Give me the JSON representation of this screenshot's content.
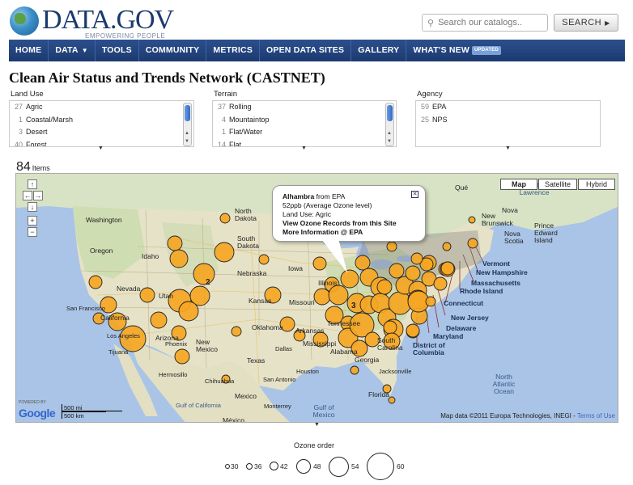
{
  "header": {
    "logo_text": "DATA.GOV",
    "tagline": "EMPOWERING PEOPLE",
    "search_placeholder": "Search our catalogs..",
    "search_button": "SEARCH"
  },
  "nav": {
    "items": [
      "HOME",
      "DATA",
      "TOOLS",
      "COMMUNITY",
      "METRICS",
      "OPEN DATA SITES",
      "GALLERY",
      "WHAT'S NEW"
    ],
    "badge": "UPDATED",
    "brand_color": "#1f3e78"
  },
  "page": {
    "title": "Clean Air Status and Trends Network (CASTNET)"
  },
  "filters": {
    "land_use": {
      "label": "Land Use",
      "rows": [
        {
          "count": "27",
          "name": "Agric"
        },
        {
          "count": "1",
          "name": "Coastal/Marsh"
        },
        {
          "count": "3",
          "name": "Desert"
        },
        {
          "count": "40",
          "name": "Forest"
        }
      ]
    },
    "terrain": {
      "label": "Terrain",
      "rows": [
        {
          "count": "37",
          "name": "Rolling"
        },
        {
          "count": "4",
          "name": "Mountaintop"
        },
        {
          "count": "1",
          "name": "Flat/Water"
        },
        {
          "count": "14",
          "name": "Flat"
        }
      ]
    },
    "agency": {
      "label": "Agency",
      "rows": [
        {
          "count": "59",
          "name": "EPA"
        },
        {
          "count": "25",
          "name": "NPS"
        }
      ]
    }
  },
  "results": {
    "count": "84",
    "label": "Items"
  },
  "map": {
    "type_buttons": [
      "Map",
      "Satellite",
      "Hybrid"
    ],
    "infowindow": {
      "site": "Alhambra",
      "from": "from EPA",
      "line2": "52ppb (Average Ozone level)",
      "line3": "Land Use: Agric",
      "link1": "View Ozone Records from this Site",
      "link2": "More Information @ EPA"
    },
    "scale_mi": "500 mi",
    "scale_km": "500 km",
    "powered_by": "POWERED BY",
    "google": "Google",
    "attribution": "Map data ©2011 Europa Technologies, INEGI -",
    "terms": "Terms of Use",
    "cluster_counts": [
      "2",
      "3"
    ],
    "labels": {
      "washington": "Washington",
      "oregon": "Oregon",
      "idaho": "Idaho",
      "nevada": "Nevada",
      "utah": "Utah",
      "san_francisco": "San Francisco",
      "california": "California",
      "los_angeles": "Los Angeles",
      "tijuana": "Tijuana",
      "arizona": "Arizona",
      "phoenix": "Phoenix",
      "new_mexico": "New Mexico",
      "hermosillo": "Hermosillo",
      "chihuahua": "Chihuahua",
      "mexico": "Mexico",
      "monterrey": "Monterrey",
      "mexico_city": "México",
      "gulf_california": "Gulf of California",
      "north_dakota": "North Dakota",
      "south_dakota": "South Dakota",
      "nebraska": "Nebraska",
      "kansas": "Kansas",
      "oklahoma": "Oklahoma",
      "texas": "Texas",
      "dallas": "Dallas",
      "houston": "Houston",
      "san_antonio": "San Antonio",
      "iowa": "Iowa",
      "missouri": "Missouri",
      "arkansas": "Arkansas",
      "mississippi": "Mississippi",
      "alabama": "Alabama",
      "georgia": "Georgia",
      "illinois": "Illinois",
      "tennessee": "Tennessee",
      "south_carolina": "South Carolina",
      "florida": "Florida",
      "jacksonville": "Jacksonville",
      "gulf_mexico": "Gulf of Mexico",
      "new_brunswick": "New Brunswick",
      "nova_scotia": "Nova Scotia",
      "gulf_st_lawrence": "Gulf of St. Lawrence",
      "pei": "Prince Edward Island",
      "north_atlantic": "North Atlantic Ocean",
      "vermont": "Vermont",
      "new_hampshire": "New Hampshire",
      "massachusetts": "Massachusetts",
      "rhode_island": "Rhode Island",
      "connecticut": "Connecticut",
      "new_jersey": "New Jersey",
      "delaware": "Delaware",
      "maryland": "Maryland",
      "dc": "District of Columbia",
      "nova": "Nova",
      "que": "Qué"
    }
  },
  "legend": {
    "title": "Ozone order",
    "values": [
      "30",
      "36",
      "42",
      "48",
      "54",
      "60"
    ]
  }
}
